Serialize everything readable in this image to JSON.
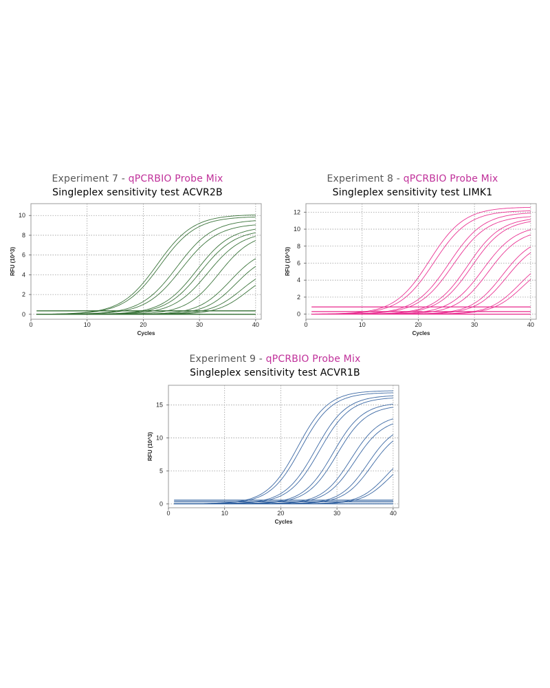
{
  "panels": [
    {
      "title_prefix": "Experiment 7 - ",
      "title_mix": "qPCRBIO Probe Mix",
      "subtitle": "Singleplex sensitivity test ACVR2B",
      "color": "#2e6b2e"
    },
    {
      "title_prefix": "Experiment 8 - ",
      "title_mix": "qPCRBIO Probe Mix",
      "subtitle": "Singleplex sensitivity test LIMK1",
      "color": "#e8268c"
    },
    {
      "title_prefix": "Experiment 9 - ",
      "title_mix": "qPCRBIO Probe Mix",
      "subtitle": "Singleplex sensitivity test ACVR1B",
      "color": "#2f5f9e"
    }
  ],
  "chart_data": [
    {
      "type": "line",
      "xlabel": "Cycles",
      "ylabel": "RFU (10^3)",
      "xlim": [
        0,
        41
      ],
      "ylim": [
        -0.5,
        11.2
      ],
      "xticks": [
        0,
        10,
        20,
        30,
        40
      ],
      "yticks": [
        0,
        2,
        4,
        6,
        8,
        10
      ],
      "grid": true,
      "baselines": [
        0.0,
        0.35
      ],
      "curves": [
        {
          "ct": 22.5,
          "max": 10.1,
          "k": 0.23
        },
        {
          "ct": 23.0,
          "max": 9.9,
          "k": 0.23
        },
        {
          "ct": 26.0,
          "max": 9.6,
          "k": 0.23
        },
        {
          "ct": 26.8,
          "max": 9.2,
          "k": 0.23
        },
        {
          "ct": 29.5,
          "max": 8.9,
          "k": 0.24
        },
        {
          "ct": 30.2,
          "max": 8.6,
          "k": 0.24
        },
        {
          "ct": 31.5,
          "max": 8.4,
          "k": 0.24
        },
        {
          "ct": 33.5,
          "max": 8.3,
          "k": 0.25
        },
        {
          "ct": 35.5,
          "max": 6.8,
          "k": 0.26
        },
        {
          "ct": 36.5,
          "max": 6.2,
          "k": 0.27
        },
        {
          "ct": 37.5,
          "max": 5.0,
          "k": 0.27
        },
        {
          "ct": 38.5,
          "max": 4.6,
          "k": 0.28
        }
      ]
    },
    {
      "type": "line",
      "xlabel": "Cycles",
      "ylabel": "RFU (10^3)",
      "xlim": [
        0,
        41
      ],
      "ylim": [
        -0.6,
        13.0
      ],
      "xticks": [
        0,
        10,
        20,
        30,
        40
      ],
      "yticks": [
        0,
        2,
        4,
        6,
        8,
        10,
        12
      ],
      "grid": true,
      "baselines": [
        0.0,
        0.3,
        0.85
      ],
      "curves": [
        {
          "ct": 22.0,
          "max": 12.6,
          "k": 0.24
        },
        {
          "ct": 22.8,
          "max": 12.2,
          "k": 0.24
        },
        {
          "ct": 25.5,
          "max": 12.0,
          "k": 0.24
        },
        {
          "ct": 26.2,
          "max": 11.6,
          "k": 0.24
        },
        {
          "ct": 28.8,
          "max": 11.4,
          "k": 0.25
        },
        {
          "ct": 29.5,
          "max": 11.2,
          "k": 0.25
        },
        {
          "ct": 31.5,
          "max": 10.5,
          "k": 0.25
        },
        {
          "ct": 32.5,
          "max": 10.0,
          "k": 0.26
        },
        {
          "ct": 35.0,
          "max": 9.2,
          "k": 0.27
        },
        {
          "ct": 35.8,
          "max": 8.8,
          "k": 0.27
        },
        {
          "ct": 38.0,
          "max": 7.0,
          "k": 0.28
        },
        {
          "ct": 38.6,
          "max": 6.5,
          "k": 0.28
        }
      ]
    },
    {
      "type": "line",
      "xlabel": "Cycles",
      "ylabel": "RFU (10^3)",
      "xlim": [
        0,
        41
      ],
      "ylim": [
        -0.6,
        18.0
      ],
      "xticks": [
        0,
        10,
        20,
        30,
        40
      ],
      "yticks": [
        0,
        5,
        10,
        15
      ],
      "grid": true,
      "baselines": [
        0.0,
        0.3,
        0.55
      ],
      "curves": [
        {
          "ct": 23.0,
          "max": 17.2,
          "k": 0.27
        },
        {
          "ct": 23.6,
          "max": 16.9,
          "k": 0.27
        },
        {
          "ct": 26.2,
          "max": 16.5,
          "k": 0.27
        },
        {
          "ct": 26.9,
          "max": 16.2,
          "k": 0.27
        },
        {
          "ct": 29.3,
          "max": 15.4,
          "k": 0.28
        },
        {
          "ct": 30.0,
          "max": 15.0,
          "k": 0.28
        },
        {
          "ct": 32.5,
          "max": 13.6,
          "k": 0.29
        },
        {
          "ct": 33.2,
          "max": 13.0,
          "k": 0.29
        },
        {
          "ct": 35.5,
          "max": 12.2,
          "k": 0.3
        },
        {
          "ct": 36.2,
          "max": 11.6,
          "k": 0.3
        },
        {
          "ct": 38.8,
          "max": 8.6,
          "k": 0.31
        },
        {
          "ct": 39.3,
          "max": 7.8,
          "k": 0.31
        }
      ]
    }
  ]
}
